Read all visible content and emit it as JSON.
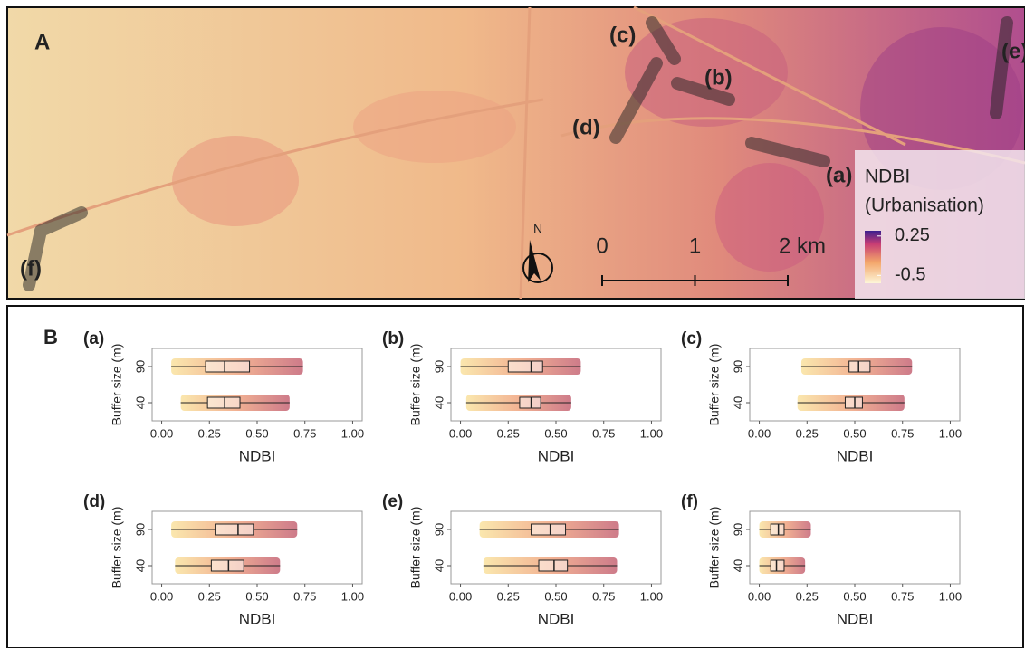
{
  "map": {
    "panel_label": "A",
    "site_labels": [
      "(a)",
      "(b)",
      "(c)",
      "(d)",
      "(e)",
      "(f)"
    ],
    "north": "N",
    "scale_ticks": [
      0,
      1,
      {
        "value": 2,
        "label": "2 km"
      }
    ],
    "legend_title": "NDBI",
    "legend_subtitle": "(Urbanisation)",
    "legend_ticks": [
      0.25,
      -0.5
    ]
  },
  "panel_b_label": "B",
  "point_colors": [
    "#f6d36b",
    "#e8743b",
    "#a50f2a"
  ],
  "chart_data": [
    {
      "type": "box",
      "panel_label": "(a)",
      "ylabel": "Buffer size (m)",
      "xlabel": "NDBI",
      "categories": [
        "40",
        "90"
      ],
      "boxes": [
        {
          "min": 0.1,
          "q1": 0.24,
          "median": 0.33,
          "q3": 0.41,
          "max": 0.67
        },
        {
          "min": 0.05,
          "q1": 0.23,
          "median": 0.33,
          "q3": 0.46,
          "max": 0.74
        }
      ],
      "xlim": [
        -0.05,
        1.05
      ],
      "xticks": [
        {
          "value": 0,
          "label": "0.00"
        },
        {
          "value": 0.25,
          "label": "0.25"
        },
        {
          "value": 0.5,
          "label": "0.50"
        },
        {
          "value": 0.75,
          "label": "0.75"
        },
        {
          "value": 1,
          "label": "1.00"
        }
      ]
    },
    {
      "type": "box",
      "panel_label": "(b)",
      "ylabel": "Buffer size (m)",
      "xlabel": "NDBI",
      "categories": [
        "40",
        "90"
      ],
      "boxes": [
        {
          "min": 0.03,
          "q1": 0.31,
          "median": 0.37,
          "q3": 0.42,
          "max": 0.58
        },
        {
          "min": 0.0,
          "q1": 0.25,
          "median": 0.37,
          "q3": 0.43,
          "max": 0.63
        }
      ],
      "xlim": [
        -0.05,
        1.05
      ],
      "xticks": [
        {
          "value": 0,
          "label": "0.00"
        },
        {
          "value": 0.25,
          "label": "0.25"
        },
        {
          "value": 0.5,
          "label": "0.50"
        },
        {
          "value": 0.75,
          "label": "0.75"
        },
        {
          "value": 1,
          "label": "1.00"
        }
      ]
    },
    {
      "type": "box",
      "panel_label": "(c)",
      "ylabel": "Buffer size (m)",
      "xlabel": "NDBI",
      "categories": [
        "40",
        "90"
      ],
      "boxes": [
        {
          "min": 0.2,
          "q1": 0.45,
          "median": 0.5,
          "q3": 0.54,
          "max": 0.76
        },
        {
          "min": 0.22,
          "q1": 0.47,
          "median": 0.52,
          "q3": 0.58,
          "max": 0.8
        }
      ],
      "xlim": [
        -0.05,
        1.05
      ],
      "xticks": [
        {
          "value": 0,
          "label": "0.00"
        },
        {
          "value": 0.25,
          "label": "0.25"
        },
        {
          "value": 0.5,
          "label": "0.50"
        },
        {
          "value": 0.75,
          "label": "0.75"
        },
        {
          "value": 1,
          "label": "1.00"
        }
      ]
    },
    {
      "type": "box",
      "panel_label": "(d)",
      "ylabel": "Buffer size (m)",
      "xlabel": "NDBI",
      "categories": [
        "40",
        "90"
      ],
      "boxes": [
        {
          "min": 0.07,
          "q1": 0.26,
          "median": 0.35,
          "q3": 0.43,
          "max": 0.62
        },
        {
          "min": 0.05,
          "q1": 0.28,
          "median": 0.4,
          "q3": 0.48,
          "max": 0.71
        }
      ],
      "xlim": [
        -0.05,
        1.05
      ],
      "xticks": [
        {
          "value": 0,
          "label": "0.00"
        },
        {
          "value": 0.25,
          "label": "0.25"
        },
        {
          "value": 0.5,
          "label": "0.50"
        },
        {
          "value": 0.75,
          "label": "0.75"
        },
        {
          "value": 1,
          "label": "1.00"
        }
      ]
    },
    {
      "type": "box",
      "panel_label": "(e)",
      "ylabel": "Buffer size (m)",
      "xlabel": "NDBI",
      "categories": [
        "40",
        "90"
      ],
      "boxes": [
        {
          "min": 0.12,
          "q1": 0.41,
          "median": 0.49,
          "q3": 0.56,
          "max": 0.82
        },
        {
          "min": 0.1,
          "q1": 0.37,
          "median": 0.47,
          "q3": 0.55,
          "max": 0.83
        }
      ],
      "xlim": [
        -0.05,
        1.05
      ],
      "xticks": [
        {
          "value": 0,
          "label": "0.00"
        },
        {
          "value": 0.25,
          "label": "0.25"
        },
        {
          "value": 0.5,
          "label": "0.50"
        },
        {
          "value": 0.75,
          "label": "0.75"
        },
        {
          "value": 1,
          "label": "1.00"
        }
      ]
    },
    {
      "type": "box",
      "panel_label": "(f)",
      "ylabel": "Buffer size (m)",
      "xlabel": "NDBI",
      "categories": [
        "40",
        "90"
      ],
      "boxes": [
        {
          "min": 0.0,
          "q1": 0.06,
          "median": 0.09,
          "q3": 0.13,
          "max": 0.24
        },
        {
          "min": 0.0,
          "q1": 0.06,
          "median": 0.1,
          "q3": 0.13,
          "max": 0.27
        }
      ],
      "xlim": [
        -0.05,
        1.05
      ],
      "xticks": [
        {
          "value": 0,
          "label": "0.00"
        },
        {
          "value": 0.25,
          "label": "0.25"
        },
        {
          "value": 0.5,
          "label": "0.50"
        },
        {
          "value": 0.75,
          "label": "0.75"
        },
        {
          "value": 1,
          "label": "1.00"
        }
      ]
    }
  ]
}
